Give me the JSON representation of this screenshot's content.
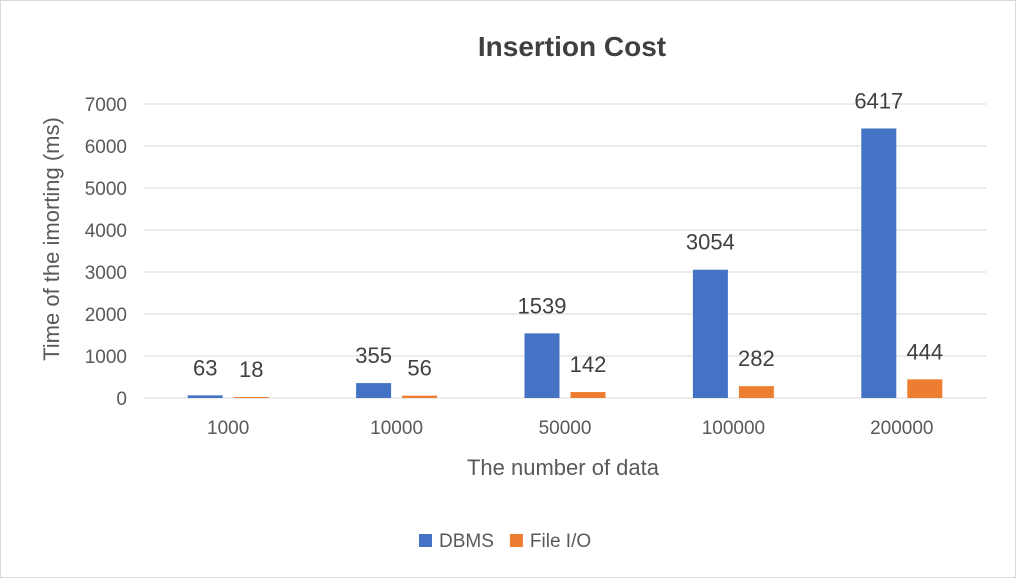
{
  "chart_data": {
    "type": "bar",
    "title": "Insertion Cost",
    "xlabel": "The number of data",
    "ylabel": "Time of the imorting (ms)",
    "categories": [
      "1000",
      "10000",
      "50000",
      "100000",
      "200000"
    ],
    "series": [
      {
        "name": "DBMS",
        "values": [
          63,
          355,
          1539,
          3054,
          6417
        ],
        "color": "#4472C4"
      },
      {
        "name": "File I/O",
        "values": [
          18,
          56,
          142,
          282,
          444
        ],
        "color": "#ED7D31"
      }
    ],
    "ylim": [
      0,
      7000
    ],
    "yticks": [
      "0",
      "1000",
      "2000",
      "3000",
      "4000",
      "5000",
      "6000",
      "7000"
    ],
    "grid": true,
    "legend": "bottom"
  }
}
